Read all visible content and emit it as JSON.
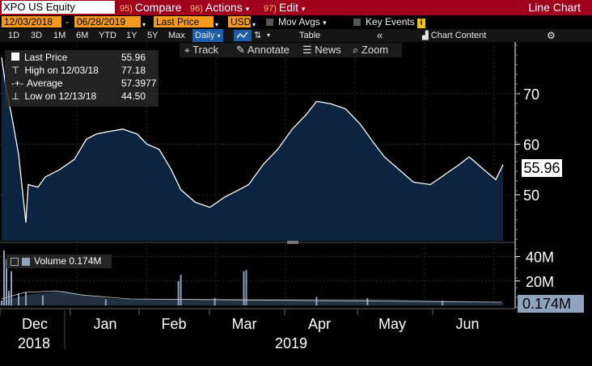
{
  "header": {
    "ticker": "XPO US Equity",
    "compare": {
      "num": "95)",
      "label": "Compare"
    },
    "actions": {
      "num": "96)",
      "label": "Actions"
    },
    "edit": {
      "num": "97)",
      "label": "Edit"
    },
    "chart_name": "Line Chart",
    "dropdown_arrow": "▾"
  },
  "options": {
    "start_date": "12/03/2018",
    "date_sep": "-",
    "end_date": "06/28/2019",
    "field": "Last Price",
    "currency": "USD",
    "mov_avgs": "Mov Avgs",
    "key_events": "Key Events",
    "key_events_icon": "i"
  },
  "periods": [
    "1D",
    "3D",
    "1M",
    "6M",
    "YTD",
    "1Y",
    "5Y",
    "Max"
  ],
  "frequency": "Daily",
  "table_label": "Table",
  "chart_content": "Chart Content",
  "collapse_icon": "«",
  "tools": {
    "track": "Track",
    "annotate": "Annotate",
    "news": "News",
    "zoom": "Zoom"
  },
  "legend": {
    "last_label": "Last Price",
    "last_value": "55.96",
    "high_label": "High on 12/03/18",
    "high_value": "77.18",
    "avg_label": "Average",
    "avg_value": "57.3977",
    "low_label": "Low on 12/13/18",
    "low_value": "44.50",
    "volume_label": "Volume",
    "volume_value": "0.174M"
  },
  "last_price_tag": "55.96",
  "volume_tag": "0.174M",
  "colors": {
    "brand_bar": "#a0001c",
    "option_orange": "#f39a1e",
    "area_fill": "#0d2440",
    "line": "#ffffff",
    "volume_bar": "#8ea3bd"
  },
  "chart_data": [
    {
      "type": "area",
      "title": "",
      "x": [
        "2018-12-03",
        "2018-12-05",
        "2018-12-07",
        "2018-12-10",
        "2018-12-13",
        "2018-12-14",
        "2018-12-18",
        "2018-12-21",
        "2018-12-27",
        "2019-01-02",
        "2019-01-07",
        "2019-01-11",
        "2019-01-16",
        "2019-01-22",
        "2019-01-28",
        "2019-02-01",
        "2019-02-06",
        "2019-02-11",
        "2019-02-15",
        "2019-02-21",
        "2019-02-27",
        "2019-03-05",
        "2019-03-11",
        "2019-03-15",
        "2019-03-21",
        "2019-03-27",
        "2019-04-02",
        "2019-04-08",
        "2019-04-12",
        "2019-04-18",
        "2019-04-24",
        "2019-04-30",
        "2019-05-06",
        "2019-05-10",
        "2019-05-16",
        "2019-05-22",
        "2019-05-29",
        "2019-06-04",
        "2019-06-10",
        "2019-06-14",
        "2019-06-20",
        "2019-06-25",
        "2019-06-28"
      ],
      "series": [
        {
          "values": [
            77.18,
            70.5,
            66.0,
            58.0,
            44.5,
            52.0,
            51.5,
            53.5,
            55.0,
            57.0,
            61.0,
            62.0,
            62.5,
            63.0,
            62.0,
            60.0,
            59.0,
            55.0,
            51.0,
            48.5,
            47.5,
            49.5,
            51.0,
            52.0,
            56.0,
            59.0,
            63.0,
            66.0,
            68.5,
            68.0,
            67.0,
            64.0,
            60.0,
            57.5,
            55.0,
            52.5,
            52.0,
            54.0,
            56.0,
            57.5,
            55.0,
            53.0,
            55.96
          ]
        }
      ],
      "ylim": [
        42,
        79
      ],
      "yticks": [
        50,
        60,
        70
      ],
      "xlabel": "",
      "ylabel": "",
      "months": [
        "Dec",
        "Jan",
        "Feb",
        "Mar",
        "Apr",
        "May",
        "Jun"
      ],
      "years": [
        "2018",
        "2019"
      ]
    },
    {
      "type": "bar",
      "title": "",
      "x": [
        "2018-12-03",
        "2018-12-04",
        "2018-12-05",
        "2018-12-06",
        "2018-12-07",
        "2018-12-10",
        "2018-12-13",
        "2018-12-20",
        "2019-01-15",
        "2019-02-14",
        "2019-02-15",
        "2019-03-01",
        "2019-03-13",
        "2019-03-14",
        "2019-04-12",
        "2019-05-03",
        "2019-06-03"
      ],
      "series": [
        {
          "name": "Volume",
          "values": [
            4.0,
            45.0,
            38.0,
            12.0,
            28.0,
            10.0,
            11.0,
            8.0,
            5.0,
            20.0,
            25.0,
            6.0,
            28.0,
            29.0,
            7.0,
            6.0,
            4.0
          ]
        }
      ],
      "yticks": [
        20,
        40
      ],
      "ytick_labels": [
        "20M",
        "40M"
      ],
      "ylim": [
        0,
        45
      ]
    }
  ]
}
